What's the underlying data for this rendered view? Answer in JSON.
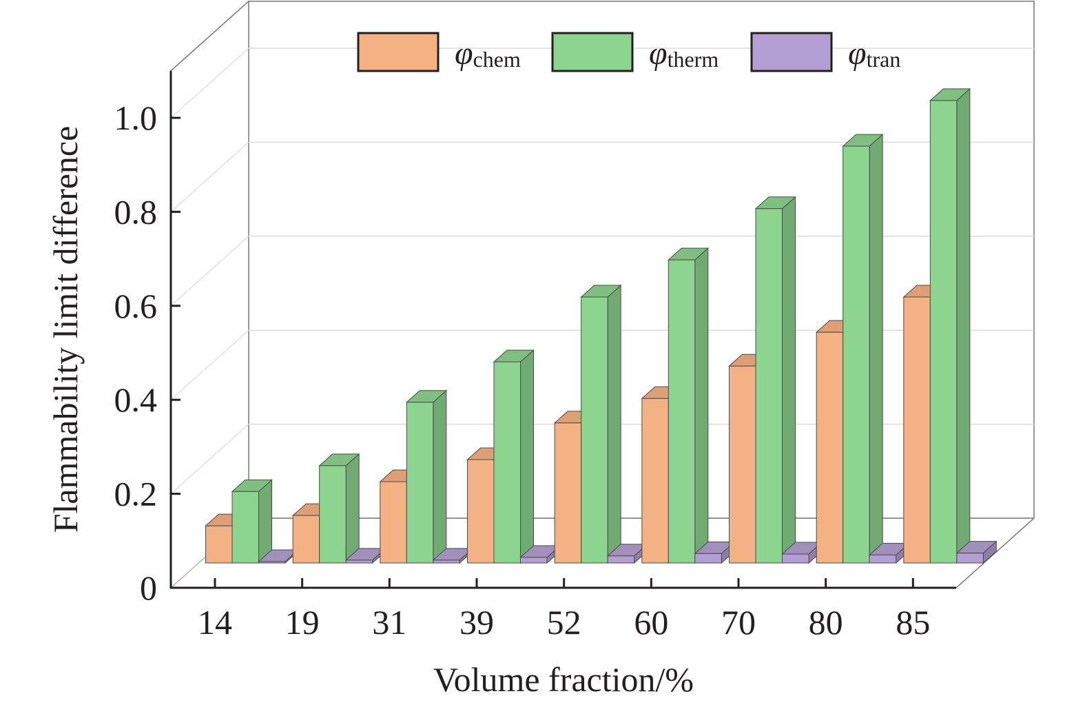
{
  "chart_data": {
    "type": "bar",
    "style": "3d-grouped",
    "title": "",
    "xlabel": "Volume fraction/%",
    "ylabel": "Flammability limit difference",
    "categories": [
      "14",
      "19",
      "31",
      "39",
      "52",
      "60",
      "70",
      "80",
      "85"
    ],
    "ylim": [
      0,
      1.1
    ],
    "yticks": [
      0,
      0.2,
      0.4,
      0.6,
      0.8,
      1.0
    ],
    "ytick_labels": [
      "0",
      "0.2",
      "0.4",
      "0.6",
      "0.8",
      "1.0"
    ],
    "grid": true,
    "legend_position": "top",
    "series": [
      {
        "name": "chem",
        "symbol": "φ",
        "subscript": "chem",
        "color": "#F4B183",
        "values": [
          0.079,
          0.101,
          0.173,
          0.22,
          0.298,
          0.35,
          0.419,
          0.491,
          0.566
        ]
      },
      {
        "name": "therm",
        "symbol": "φ",
        "subscript": "therm",
        "color": "#8DD48F",
        "values": [
          0.152,
          0.207,
          0.342,
          0.428,
          0.566,
          0.645,
          0.754,
          0.887,
          0.984
        ]
      },
      {
        "name": "tran",
        "symbol": "φ",
        "subscript": "tran",
        "color": "#B39FD1",
        "values": [
          0.003,
          0.006,
          0.006,
          0.012,
          0.015,
          0.02,
          0.019,
          0.017,
          0.021
        ]
      }
    ]
  }
}
